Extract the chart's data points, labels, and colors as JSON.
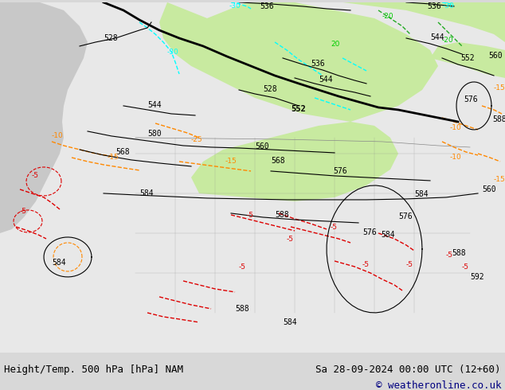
{
  "title_left": "Height/Temp. 500 hPa [hPa] NAM",
  "title_right": "Sa 28-09-2024 00:00 UTC (12+60)",
  "copyright": "© weatheronline.co.uk",
  "bg_color": "#d8d8d8",
  "map_bg_color": "#e8e8e8",
  "land_color": "#e0e0e0",
  "green_area_color": "#c8eaa0",
  "figsize": [
    6.34,
    4.9
  ],
  "dpi": 100,
  "bottom_bar_color": "#f0f0f0",
  "title_color": "#000080",
  "copyright_color": "#000080"
}
